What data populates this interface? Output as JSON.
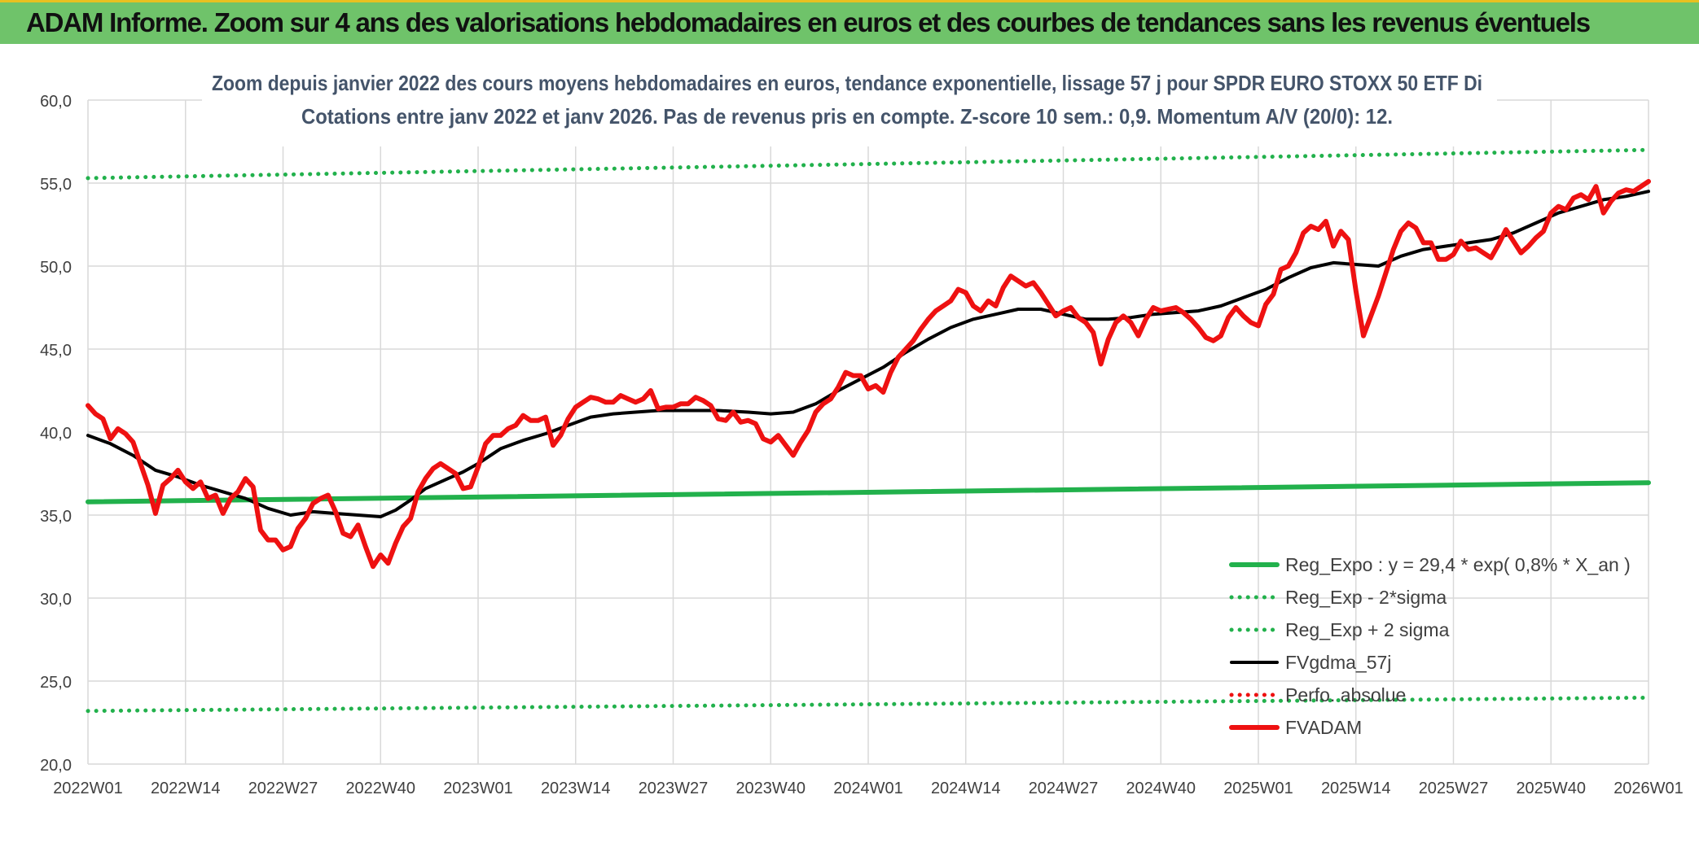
{
  "banner": {
    "title": "ADAM Informe. Zoom sur 4 ans des valorisations hebdomadaires en euros et des courbes de tendances sans les revenus éventuels"
  },
  "colors": {
    "banner_bg": "#6fc36a",
    "banner_border": "#e8c020",
    "reg_green": "#22b14c",
    "price_red": "#ee1111",
    "trend_black": "#000000",
    "grid": "#d9d9d9",
    "axis_text": "#404040",
    "title_text": "#44546a"
  },
  "chart_data": {
    "type": "line",
    "title": "Zoom depuis janvier 2022 des cours moyens hebdomadaires en euros, tendance exponentielle, lissage 57 j pour SPDR EURO STOXX 50 ETF Di",
    "subtitle": "Cotations entre janv 2022 et janv 2026. Pas de revenus pris en compte. Z-score 10 sem.: 0,9. Momentum A/V (20/0): 12.",
    "xlabel": "",
    "ylabel": "",
    "ylim": [
      20,
      60
    ],
    "yticks": [
      "20,0",
      "25,0",
      "30,0",
      "35,0",
      "40,0",
      "45,0",
      "50,0",
      "55,0",
      "60,0"
    ],
    "xlim": [
      0,
      208
    ],
    "xticks": [
      {
        "x": 0,
        "label": "2022W01"
      },
      {
        "x": 13,
        "label": "2022W14"
      },
      {
        "x": 26,
        "label": "2022W27"
      },
      {
        "x": 39,
        "label": "2022W40"
      },
      {
        "x": 52,
        "label": "2023W01"
      },
      {
        "x": 65,
        "label": "2023W14"
      },
      {
        "x": 78,
        "label": "2023W27"
      },
      {
        "x": 91,
        "label": "2023W40"
      },
      {
        "x": 104,
        "label": "2024W01"
      },
      {
        "x": 117,
        "label": "2024W14"
      },
      {
        "x": 130,
        "label": "2024W27"
      },
      {
        "x": 143,
        "label": "2024W40"
      },
      {
        "x": 156,
        "label": "2025W01"
      },
      {
        "x": 169,
        "label": "2025W14"
      },
      {
        "x": 182,
        "label": "2025W27"
      },
      {
        "x": 195,
        "label": "2025W40"
      },
      {
        "x": 208,
        "label": "2026W01"
      }
    ],
    "grid": true,
    "legend_position": "bottom-right",
    "series": [
      {
        "name": "Reg_Expo : y = 29,4 * exp( 0,8% *  X_an )",
        "style": "solid-thick",
        "color": "#22b14c",
        "points": [
          [
            0,
            35.8
          ],
          [
            208,
            36.95
          ]
        ]
      },
      {
        "name": "Reg_Exp - 2*sigma",
        "style": "dotted",
        "color": "#22b14c",
        "points": [
          [
            0,
            23.2
          ],
          [
            208,
            24.0
          ]
        ]
      },
      {
        "name": "Reg_Exp + 2 sigma",
        "style": "dotted",
        "color": "#22b14c",
        "points": [
          [
            0,
            55.3
          ],
          [
            208,
            57.0
          ]
        ]
      },
      {
        "name": "FVgdma_57j",
        "style": "solid",
        "color": "#000000",
        "points": [
          [
            0,
            39.8
          ],
          [
            3,
            39.3
          ],
          [
            6,
            38.6
          ],
          [
            9,
            37.7
          ],
          [
            12,
            37.3
          ],
          [
            15,
            36.8
          ],
          [
            18,
            36.4
          ],
          [
            21,
            36.0
          ],
          [
            24,
            35.4
          ],
          [
            27,
            35.0
          ],
          [
            30,
            35.2
          ],
          [
            33,
            35.1
          ],
          [
            36,
            35.0
          ],
          [
            39,
            34.9
          ],
          [
            41,
            35.3
          ],
          [
            43,
            35.9
          ],
          [
            45,
            36.6
          ],
          [
            48,
            37.2
          ],
          [
            50,
            37.6
          ],
          [
            52,
            38.1
          ],
          [
            55,
            39.0
          ],
          [
            58,
            39.5
          ],
          [
            61,
            39.9
          ],
          [
            64,
            40.4
          ],
          [
            67,
            40.9
          ],
          [
            70,
            41.1
          ],
          [
            73,
            41.2
          ],
          [
            76,
            41.3
          ],
          [
            80,
            41.3
          ],
          [
            84,
            41.3
          ],
          [
            88,
            41.2
          ],
          [
            91,
            41.1
          ],
          [
            94,
            41.2
          ],
          [
            97,
            41.7
          ],
          [
            100,
            42.5
          ],
          [
            103,
            43.2
          ],
          [
            106,
            43.9
          ],
          [
            109,
            44.8
          ],
          [
            112,
            45.6
          ],
          [
            115,
            46.3
          ],
          [
            118,
            46.8
          ],
          [
            121,
            47.1
          ],
          [
            124,
            47.4
          ],
          [
            127,
            47.4
          ],
          [
            130,
            47.1
          ],
          [
            133,
            46.8
          ],
          [
            136,
            46.8
          ],
          [
            139,
            46.9
          ],
          [
            142,
            47.1
          ],
          [
            145,
            47.2
          ],
          [
            148,
            47.3
          ],
          [
            151,
            47.6
          ],
          [
            154,
            48.1
          ],
          [
            157,
            48.6
          ],
          [
            160,
            49.3
          ],
          [
            163,
            49.9
          ],
          [
            166,
            50.2
          ],
          [
            169,
            50.1
          ],
          [
            172,
            50.0
          ],
          [
            175,
            50.6
          ],
          [
            178,
            51.0
          ],
          [
            181,
            51.2
          ],
          [
            184,
            51.4
          ],
          [
            187,
            51.6
          ],
          [
            190,
            52.0
          ],
          [
            193,
            52.6
          ],
          [
            196,
            53.2
          ],
          [
            199,
            53.6
          ],
          [
            202,
            54.0
          ],
          [
            205,
            54.2
          ],
          [
            208,
            54.5
          ]
        ]
      },
      {
        "name": "Perfo. absolue",
        "style": "dotted",
        "color": "#ee1111",
        "points": []
      },
      {
        "name": "FVADAM",
        "style": "solid-thick",
        "color": "#ee1111",
        "points": [
          [
            0,
            41.6
          ],
          [
            1,
            41.1
          ],
          [
            2,
            40.8
          ],
          [
            3,
            39.6
          ],
          [
            4,
            40.2
          ],
          [
            5,
            39.9
          ],
          [
            6,
            39.4
          ],
          [
            7,
            38.1
          ],
          [
            8,
            36.8
          ],
          [
            9,
            35.1
          ],
          [
            10,
            36.8
          ],
          [
            11,
            37.2
          ],
          [
            12,
            37.7
          ],
          [
            13,
            37.0
          ],
          [
            14,
            36.6
          ],
          [
            15,
            37.0
          ],
          [
            16,
            36.0
          ],
          [
            17,
            36.2
          ],
          [
            18,
            35.1
          ],
          [
            19,
            36.0
          ],
          [
            20,
            36.4
          ],
          [
            21,
            37.2
          ],
          [
            22,
            36.7
          ],
          [
            23,
            34.1
          ],
          [
            24,
            33.5
          ],
          [
            25,
            33.5
          ],
          [
            26,
            32.9
          ],
          [
            27,
            33.1
          ],
          [
            28,
            34.2
          ],
          [
            29,
            34.8
          ],
          [
            30,
            35.7
          ],
          [
            31,
            36.0
          ],
          [
            32,
            36.2
          ],
          [
            33,
            35.2
          ],
          [
            34,
            33.9
          ],
          [
            35,
            33.7
          ],
          [
            36,
            34.4
          ],
          [
            37,
            33.1
          ],
          [
            38,
            31.9
          ],
          [
            39,
            32.6
          ],
          [
            40,
            32.1
          ],
          [
            41,
            33.3
          ],
          [
            42,
            34.3
          ],
          [
            43,
            34.8
          ],
          [
            44,
            36.4
          ],
          [
            45,
            37.2
          ],
          [
            46,
            37.8
          ],
          [
            47,
            38.1
          ],
          [
            48,
            37.8
          ],
          [
            49,
            37.5
          ],
          [
            50,
            36.6
          ],
          [
            51,
            36.7
          ],
          [
            52,
            37.9
          ],
          [
            53,
            39.3
          ],
          [
            54,
            39.8
          ],
          [
            55,
            39.8
          ],
          [
            56,
            40.2
          ],
          [
            57,
            40.4
          ],
          [
            58,
            41.0
          ],
          [
            59,
            40.7
          ],
          [
            60,
            40.7
          ],
          [
            61,
            40.9
          ],
          [
            62,
            39.2
          ],
          [
            63,
            39.8
          ],
          [
            64,
            40.8
          ],
          [
            65,
            41.5
          ],
          [
            66,
            41.8
          ],
          [
            67,
            42.1
          ],
          [
            68,
            42.0
          ],
          [
            69,
            41.8
          ],
          [
            70,
            41.8
          ],
          [
            71,
            42.2
          ],
          [
            72,
            42.0
          ],
          [
            73,
            41.8
          ],
          [
            74,
            42.0
          ],
          [
            75,
            42.5
          ],
          [
            76,
            41.4
          ],
          [
            77,
            41.5
          ],
          [
            78,
            41.5
          ],
          [
            79,
            41.7
          ],
          [
            80,
            41.7
          ],
          [
            81,
            42.1
          ],
          [
            82,
            41.9
          ],
          [
            83,
            41.6
          ],
          [
            84,
            40.8
          ],
          [
            85,
            40.7
          ],
          [
            86,
            41.2
          ],
          [
            87,
            40.6
          ],
          [
            88,
            40.7
          ],
          [
            89,
            40.5
          ],
          [
            90,
            39.6
          ],
          [
            91,
            39.4
          ],
          [
            92,
            39.8
          ],
          [
            93,
            39.2
          ],
          [
            94,
            38.6
          ],
          [
            95,
            39.4
          ],
          [
            96,
            40.1
          ],
          [
            97,
            41.2
          ],
          [
            98,
            41.7
          ],
          [
            99,
            42.0
          ],
          [
            100,
            42.7
          ],
          [
            101,
            43.6
          ],
          [
            102,
            43.4
          ],
          [
            103,
            43.4
          ],
          [
            104,
            42.6
          ],
          [
            105,
            42.8
          ],
          [
            106,
            42.4
          ],
          [
            107,
            43.6
          ],
          [
            108,
            44.5
          ],
          [
            109,
            45.0
          ],
          [
            110,
            45.5
          ],
          [
            111,
            46.2
          ],
          [
            112,
            46.8
          ],
          [
            113,
            47.3
          ],
          [
            114,
            47.6
          ],
          [
            115,
            47.9
          ],
          [
            116,
            48.6
          ],
          [
            117,
            48.4
          ],
          [
            118,
            47.6
          ],
          [
            119,
            47.3
          ],
          [
            120,
            47.9
          ],
          [
            121,
            47.6
          ],
          [
            122,
            48.7
          ],
          [
            123,
            49.4
          ],
          [
            124,
            49.1
          ],
          [
            125,
            48.8
          ],
          [
            126,
            49.0
          ],
          [
            127,
            48.4
          ],
          [
            128,
            47.7
          ],
          [
            129,
            47.0
          ],
          [
            130,
            47.3
          ],
          [
            131,
            47.5
          ],
          [
            132,
            46.9
          ],
          [
            133,
            46.6
          ],
          [
            134,
            46.0
          ],
          [
            135,
            44.1
          ],
          [
            136,
            45.6
          ],
          [
            137,
            46.6
          ],
          [
            138,
            47.0
          ],
          [
            139,
            46.6
          ],
          [
            140,
            45.8
          ],
          [
            141,
            46.8
          ],
          [
            142,
            47.5
          ],
          [
            143,
            47.3
          ],
          [
            144,
            47.4
          ],
          [
            145,
            47.5
          ],
          [
            146,
            47.2
          ],
          [
            147,
            46.8
          ],
          [
            148,
            46.3
          ],
          [
            149,
            45.7
          ],
          [
            150,
            45.5
          ],
          [
            151,
            45.8
          ],
          [
            152,
            46.9
          ],
          [
            153,
            47.5
          ],
          [
            154,
            47.0
          ],
          [
            155,
            46.6
          ],
          [
            156,
            46.4
          ],
          [
            157,
            47.7
          ],
          [
            158,
            48.3
          ],
          [
            159,
            49.8
          ],
          [
            160,
            50.0
          ],
          [
            161,
            50.8
          ],
          [
            162,
            52.0
          ],
          [
            163,
            52.4
          ],
          [
            164,
            52.2
          ],
          [
            165,
            52.7
          ],
          [
            166,
            51.2
          ],
          [
            167,
            52.1
          ],
          [
            168,
            51.6
          ],
          [
            169,
            48.5
          ],
          [
            170,
            45.8
          ],
          [
            171,
            47.0
          ],
          [
            172,
            48.2
          ],
          [
            173,
            49.6
          ],
          [
            174,
            51.0
          ],
          [
            175,
            52.1
          ],
          [
            176,
            52.6
          ],
          [
            177,
            52.3
          ],
          [
            178,
            51.4
          ],
          [
            179,
            51.4
          ],
          [
            180,
            50.4
          ],
          [
            181,
            50.4
          ],
          [
            182,
            50.7
          ],
          [
            183,
            51.5
          ],
          [
            184,
            51.0
          ],
          [
            185,
            51.1
          ],
          [
            186,
            50.8
          ],
          [
            187,
            50.5
          ],
          [
            188,
            51.3
          ],
          [
            189,
            52.2
          ],
          [
            190,
            51.5
          ],
          [
            191,
            50.8
          ],
          [
            192,
            51.2
          ],
          [
            193,
            51.7
          ],
          [
            194,
            52.1
          ],
          [
            195,
            53.2
          ],
          [
            196,
            53.6
          ],
          [
            197,
            53.4
          ],
          [
            198,
            54.1
          ],
          [
            199,
            54.3
          ],
          [
            200,
            54.0
          ],
          [
            201,
            54.8
          ],
          [
            202,
            53.2
          ],
          [
            203,
            53.9
          ],
          [
            204,
            54.4
          ],
          [
            205,
            54.6
          ],
          [
            206,
            54.5
          ],
          [
            207,
            54.8
          ],
          [
            208,
            55.1
          ]
        ]
      }
    ]
  }
}
